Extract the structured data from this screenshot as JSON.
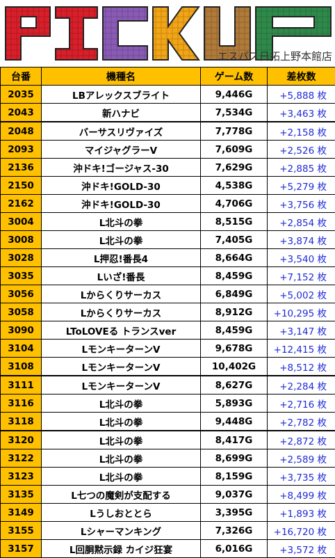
{
  "banner": {
    "title": "PICKUP",
    "store": "エスパス日拓上野本館店",
    "letter_colors": [
      "#d81f2a",
      "#d81f2a",
      "#8a5bb5",
      "#f2a516",
      "#b07a3a",
      "#2f8a4a"
    ]
  },
  "table": {
    "headers": [
      "台番",
      "機種名",
      "ゲーム数",
      "差枚数"
    ],
    "rows": [
      {
        "no": "2035",
        "name": "LBアレックスブライト",
        "games": "9,446G",
        "diff": "+5,888 枚"
      },
      {
        "no": "2043",
        "name": "新ハナビ",
        "games": "7,534G",
        "diff": "+3,463 枚"
      },
      {
        "no": "2048",
        "name": "バーサスリヴァイズ",
        "games": "7,778G",
        "diff": "+2,158 枚"
      },
      {
        "no": "2093",
        "name": "マイジャグラーV",
        "games": "7,609G",
        "diff": "+2,526 枚"
      },
      {
        "no": "2136",
        "name": "沖ドキ!ゴージャス-30",
        "games": "7,629G",
        "diff": "+2,885 枚"
      },
      {
        "no": "2150",
        "name": "沖ドキ!GOLD-30",
        "games": "4,538G",
        "diff": "+5,279 枚"
      },
      {
        "no": "2162",
        "name": "沖ドキ!GOLD-30",
        "games": "4,706G",
        "diff": "+3,756 枚"
      },
      {
        "no": "3004",
        "name": "L北斗の拳",
        "games": "8,515G",
        "diff": "+2,854 枚"
      },
      {
        "no": "3008",
        "name": "L北斗の拳",
        "games": "7,405G",
        "diff": "+3,874 枚"
      },
      {
        "no": "3028",
        "name": "L押忍!番長4",
        "games": "8,664G",
        "diff": "+3,540 枚"
      },
      {
        "no": "3035",
        "name": "Lいざ!番長",
        "games": "8,459G",
        "diff": "+7,152 枚"
      },
      {
        "no": "3056",
        "name": "Lからくりサーカス",
        "games": "6,849G",
        "diff": "+5,002 枚"
      },
      {
        "no": "3058",
        "name": "Lからくりサーカス",
        "games": "8,912G",
        "diff": "+10,295 枚"
      },
      {
        "no": "3090",
        "name": "LToLOVEる トランスver",
        "games": "8,459G",
        "diff": "+3,147 枚"
      },
      {
        "no": "3104",
        "name": "LモンキーターンV",
        "games": "9,678G",
        "diff": "+12,415 枚"
      },
      {
        "no": "3108",
        "name": "LモンキーターンV",
        "games": "10,402G",
        "diff": "+8,512 枚"
      },
      {
        "no": "3111",
        "name": "LモンキーターンV",
        "games": "8,627G",
        "diff": "+2,284 枚"
      },
      {
        "no": "3116",
        "name": "L北斗の拳",
        "games": "5,893G",
        "diff": "+2,716 枚"
      },
      {
        "no": "3118",
        "name": "L北斗の拳",
        "games": "9,448G",
        "diff": "+2,782 枚"
      },
      {
        "no": "3120",
        "name": "L北斗の拳",
        "games": "8,417G",
        "diff": "+2,872 枚"
      },
      {
        "no": "3122",
        "name": "L北斗の拳",
        "games": "8,699G",
        "diff": "+2,589 枚"
      },
      {
        "no": "3123",
        "name": "L北斗の拳",
        "games": "8,159G",
        "diff": "+3,735 枚"
      },
      {
        "no": "3135",
        "name": "L七つの魔剣が支配する",
        "games": "9,037G",
        "diff": "+8,499 枚"
      },
      {
        "no": "3149",
        "name": "Lうしおととら",
        "games": "3,395G",
        "diff": "+1,893 枚"
      },
      {
        "no": "3155",
        "name": "Lシャーマンキング",
        "games": "7,326G",
        "diff": "+16,720 枚"
      },
      {
        "no": "3157",
        "name": "L回胴黙示録 カイジ狂宴",
        "games": "6,016G",
        "diff": "+3,572 枚"
      }
    ]
  }
}
